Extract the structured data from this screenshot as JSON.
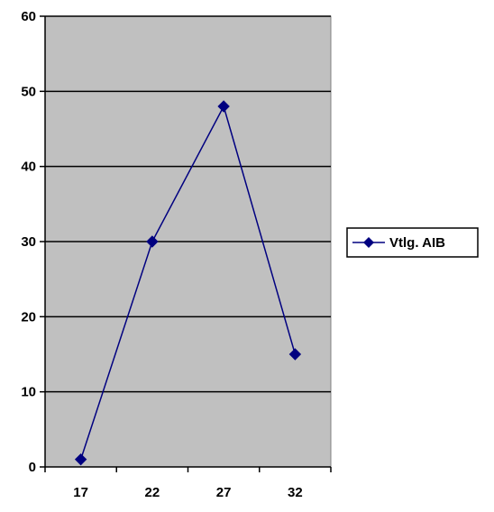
{
  "chart_data": {
    "type": "line",
    "categories": [
      "17",
      "22",
      "27",
      "32"
    ],
    "series": [
      {
        "name": "Vtlg. AIB",
        "points": [
          {
            "x": 17,
            "y": 1
          },
          {
            "x": 22,
            "y": 30
          },
          {
            "x": 27,
            "y": 48
          },
          {
            "x": 32,
            "y": 15
          }
        ]
      }
    ],
    "y_ticks": [
      "0",
      "10",
      "20",
      "30",
      "40",
      "50",
      "60"
    ],
    "ylim": [
      0,
      60
    ],
    "xlim": [
      14.5,
      34.5
    ],
    "grid": true,
    "plot_background": "#c0c0c0",
    "series_color": "#000080",
    "legend_position": "right"
  }
}
